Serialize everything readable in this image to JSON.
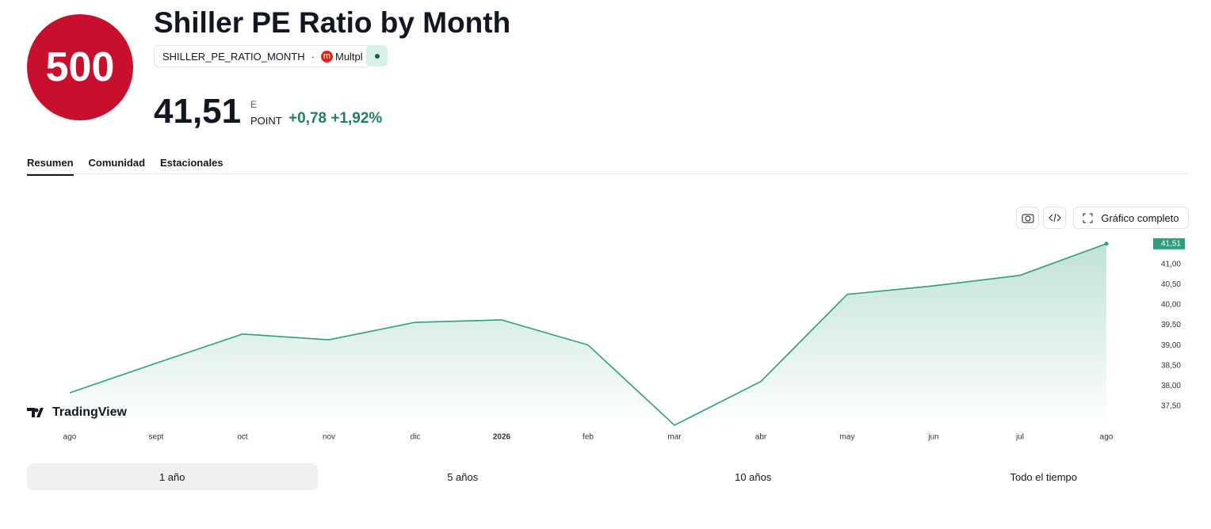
{
  "header": {
    "logo": "500",
    "title": "Shiller PE Ratio by Month",
    "symbol": "SHILLER_PE_RATIO_MONTH",
    "source_icon": "m",
    "source": "Multpl",
    "price": "41,51",
    "price_flag": "E",
    "unit": "POINT",
    "change": "+0,78",
    "change_pct": "+1,92%"
  },
  "tabs": [
    "Resumen",
    "Comunidad",
    "Estacionales"
  ],
  "toolbar": {
    "full_chart": "Gráfico completo"
  },
  "watermark": "TradingView",
  "ranges": [
    "1 año",
    "5 años",
    "10 años",
    "Todo el tiempo"
  ],
  "chart_data": {
    "type": "area",
    "color": "#2e9e7e",
    "categories": [
      "ago",
      "sept",
      "oct",
      "nov",
      "dic",
      "2026",
      "feb",
      "mar",
      "abr",
      "may",
      "jun",
      "jul",
      "ago"
    ],
    "values": [
      37.83,
      38.56,
      39.28,
      39.14,
      39.57,
      39.63,
      39.01,
      37.03,
      38.11,
      40.26,
      40.47,
      40.73,
      41.51
    ],
    "value_labels": [
      null,
      null,
      null,
      null,
      null,
      null,
      null,
      null,
      null,
      null,
      null,
      null,
      "41,51"
    ],
    "ylim": [
      36.97,
      41.76
    ],
    "yticks": [
      {
        "value": 37.5,
        "label": "37,50"
      },
      {
        "value": 38,
        "label": "38,00"
      },
      {
        "value": 38.5,
        "label": "38,50"
      },
      {
        "value": 39,
        "label": "39,00"
      },
      {
        "value": 39.5,
        "label": "39,50"
      },
      {
        "value": 40,
        "label": "40,00"
      },
      {
        "value": 40.5,
        "label": "40,50"
      },
      {
        "value": 41,
        "label": "41,00"
      }
    ],
    "grid": false
  }
}
